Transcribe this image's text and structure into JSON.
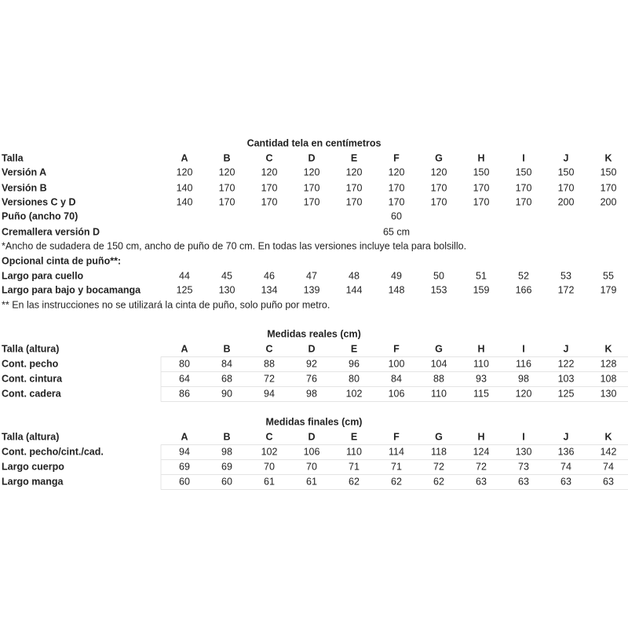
{
  "sections": [
    {
      "title": "Cantidad tela en centímetros",
      "header": {
        "label": "Talla",
        "columns": [
          "A",
          "B",
          "C",
          "D",
          "E",
          "F",
          "G",
          "H",
          "I",
          "J",
          "K"
        ]
      },
      "rows": [
        {
          "label": "Versión A",
          "values": [
            120,
            120,
            120,
            120,
            120,
            120,
            120,
            150,
            150,
            150,
            150
          ]
        },
        {
          "label": "Versión B",
          "values": [
            140,
            170,
            170,
            170,
            170,
            170,
            170,
            170,
            170,
            170,
            170
          ]
        },
        {
          "label": "Versiones C y D",
          "values": [
            140,
            170,
            170,
            170,
            170,
            170,
            170,
            170,
            170,
            200,
            200
          ]
        }
      ],
      "puno": {
        "label": "Puño (ancho 70)",
        "value": 60
      },
      "cremallera": {
        "label": "Cremallera versión D",
        "value": "65 cm"
      },
      "note": "*Ancho de sudadera de 150 cm, ancho de puño de 70 cm. En todas las versiones incluye tela para bolsillo.",
      "optional_label": "Opcional  cinta de puño**:",
      "optional_rows": [
        {
          "label": "Largo para cuello",
          "values": [
            44,
            45,
            46,
            47,
            48,
            49,
            50,
            51,
            52,
            53,
            55
          ]
        },
        {
          "label": "Largo para bajo y bocamanga",
          "values": [
            125,
            130,
            134,
            139,
            144,
            148,
            153,
            159,
            166,
            172,
            179
          ]
        }
      ],
      "note2": "** En las instrucciones no se utilizará la cinta de puño, solo puño por metro."
    },
    {
      "title": "Medidas reales (cm)",
      "header": {
        "label": "Talla (altura)",
        "columns": [
          "A",
          "B",
          "C",
          "D",
          "E",
          "F",
          "G",
          "H",
          "I",
          "J",
          "K"
        ]
      },
      "rows": [
        {
          "label": "Cont. pecho",
          "values": [
            80,
            84,
            88,
            92,
            96,
            100,
            104,
            110,
            116,
            122,
            128
          ]
        },
        {
          "label": "Cont. cintura",
          "values": [
            64,
            68,
            72,
            76,
            80,
            84,
            88,
            93,
            98,
            103,
            108
          ]
        },
        {
          "label": "Cont. cadera",
          "values": [
            86,
            90,
            94,
            98,
            102,
            106,
            110,
            115,
            120,
            125,
            130
          ]
        }
      ]
    },
    {
      "title": "Medidas finales (cm)",
      "header": {
        "label": "Talla (altura)",
        "columns": [
          "A",
          "B",
          "C",
          "D",
          "E",
          "F",
          "G",
          "H",
          "I",
          "J",
          "K"
        ]
      },
      "rows": [
        {
          "label": "Cont. pecho/cint./cad.",
          "values": [
            94,
            98,
            102,
            106,
            110,
            114,
            118,
            124,
            130,
            136,
            142
          ]
        },
        {
          "label": "Largo cuerpo",
          "values": [
            69,
            69,
            70,
            70,
            71,
            71,
            72,
            72,
            73,
            74,
            74
          ]
        },
        {
          "label": "Largo manga",
          "values": [
            60,
            60,
            61,
            61,
            62,
            62,
            62,
            63,
            63,
            63,
            63
          ]
        }
      ]
    }
  ]
}
